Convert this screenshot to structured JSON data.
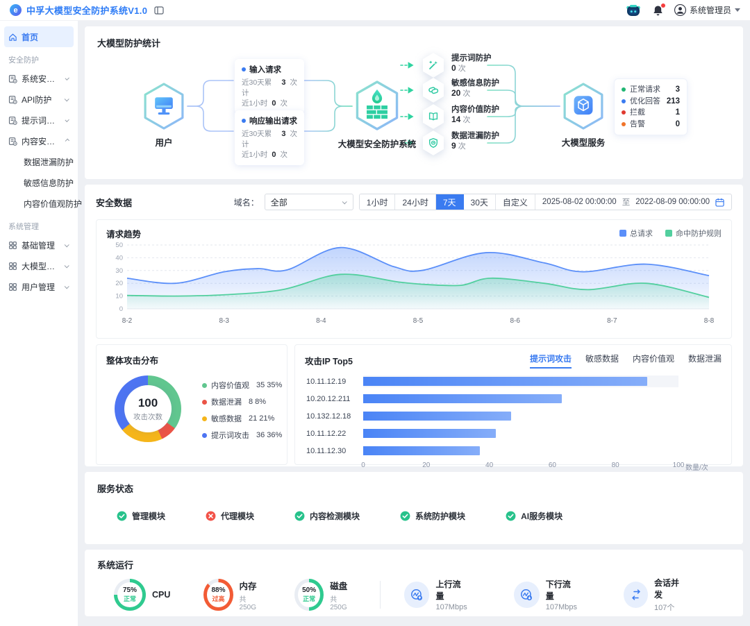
{
  "header": {
    "title": "中孚大模型安全防护系统V1.0",
    "user": "系统管理员"
  },
  "sidebar": {
    "items": [
      {
        "type": "item",
        "label": "首页",
        "icon": "home",
        "active": true
      },
      {
        "type": "section",
        "label": "安全防护"
      },
      {
        "type": "item",
        "label": "系统安全防护",
        "icon": "doc",
        "chevron": "down"
      },
      {
        "type": "item",
        "label": "API防护",
        "icon": "doc",
        "chevron": "down"
      },
      {
        "type": "item",
        "label": "提示词攻击防护",
        "icon": "doc",
        "chevron": "down"
      },
      {
        "type": "item",
        "label": "内容安全防护",
        "icon": "doc",
        "chevron": "up"
      },
      {
        "type": "subitem",
        "label": "数据泄漏防护"
      },
      {
        "type": "subitem",
        "label": "敏感信息防护"
      },
      {
        "type": "subitem",
        "label": "内容价值观防护"
      },
      {
        "type": "section",
        "label": "系统管理"
      },
      {
        "type": "item",
        "label": "基础管理",
        "icon": "grid",
        "chevron": "down"
      },
      {
        "type": "item",
        "label": "大模型管理",
        "icon": "grid",
        "chevron": "down"
      },
      {
        "type": "item",
        "label": "用户管理",
        "icon": "grid",
        "chevron": "down"
      }
    ]
  },
  "protection_stats": {
    "title": "大模型防护统计",
    "user_node": "用户",
    "system_node": "大模型安全防护系统",
    "service_node": "大模型服务",
    "request_cards": [
      {
        "title": "输入请求",
        "rows": [
          {
            "label": "近30天累计",
            "value": "3",
            "unit": "次"
          },
          {
            "label": "近1小时",
            "value": "0",
            "unit": "次"
          }
        ]
      },
      {
        "title": "响应输出请求",
        "rows": [
          {
            "label": "近30天累计",
            "value": "3",
            "unit": "次"
          },
          {
            "label": "近1小时",
            "value": "0",
            "unit": "次"
          }
        ]
      }
    ],
    "protections": [
      {
        "label": "提示词防护",
        "value": "0",
        "unit": "次",
        "icon": "wand"
      },
      {
        "label": "敏感信息防护",
        "value": "20",
        "unit": "次",
        "icon": "tag"
      },
      {
        "label": "内容价值防护",
        "value": "14",
        "unit": "次",
        "icon": "book"
      },
      {
        "label": "数据泄漏防护",
        "value": "9",
        "unit": "次",
        "icon": "shield"
      }
    ],
    "service_stats": [
      {
        "label": "正常请求",
        "value": "3",
        "color": "#21b573"
      },
      {
        "label": "优化回答",
        "value": "213",
        "color": "#3a7bf0"
      },
      {
        "label": "拦截",
        "value": "1",
        "color": "#e0392f"
      },
      {
        "label": "告警",
        "value": "0",
        "color": "#f0742a"
      }
    ]
  },
  "security_data": {
    "title": "安全数据",
    "domain_label": "域名：",
    "domain_value": "全部",
    "range_buttons": [
      {
        "label": "1小时",
        "active": false
      },
      {
        "label": "24小时",
        "active": false
      },
      {
        "label": "7天",
        "active": true
      },
      {
        "label": "30天",
        "active": false
      },
      {
        "label": "自定义",
        "active": false
      }
    ],
    "date_start": "2025-08-02 00:00:00",
    "date_separator": "至",
    "date_end": "2022-08-09 00:00:00"
  },
  "chart_data": [
    {
      "type": "area",
      "title": "请求趋势",
      "x_labels": [
        "8-2",
        "8-3",
        "8-4",
        "8-5",
        "8-6",
        "8-7",
        "8-8"
      ],
      "x_range": [
        0,
        6
      ],
      "ylim": [
        0,
        50
      ],
      "y_ticks": [
        0,
        10,
        20,
        30,
        40,
        50
      ],
      "grid": true,
      "legend_position": "top-right",
      "series": [
        {
          "name": "总请求",
          "color": "#5b8ff9",
          "points": [
            [
              0,
              24
            ],
            [
              0.5,
              20
            ],
            [
              1,
              29
            ],
            [
              1.35,
              31.5
            ],
            [
              1.65,
              30.5
            ],
            [
              2.2,
              48
            ],
            [
              2.75,
              33
            ],
            [
              3.05,
              30.2
            ],
            [
              3.7,
              44
            ],
            [
              4.3,
              36
            ],
            [
              4.7,
              29
            ],
            [
              5.35,
              35
            ],
            [
              6,
              26
            ]
          ]
        },
        {
          "name": "命中防护规则",
          "color": "#52cf9e",
          "points": [
            [
              0,
              10.5
            ],
            [
              0.5,
              10
            ],
            [
              1,
              11
            ],
            [
              1.6,
              15
            ],
            [
              2.2,
              27
            ],
            [
              2.8,
              21
            ],
            [
              3.1,
              19
            ],
            [
              3.45,
              18.5
            ],
            [
              3.75,
              24
            ],
            [
              4.3,
              20
            ],
            [
              4.75,
              15
            ],
            [
              5.35,
              20
            ],
            [
              6,
              9
            ]
          ]
        }
      ]
    },
    {
      "type": "pie",
      "title": "整体攻击分布",
      "center_value": "100",
      "center_label": "攻击次数",
      "slices": [
        {
          "label": "内容价值观",
          "value": 35,
          "percent": "35%",
          "color": "#61c68f"
        },
        {
          "label": "数据泄漏",
          "value": 8,
          "percent": "8%",
          "color": "#ea5446"
        },
        {
          "label": "敏感数据",
          "value": 21,
          "percent": "21%",
          "color": "#f5b51a"
        },
        {
          "label": "提示词攻击",
          "value": 36,
          "percent": "36%",
          "color": "#4d74f2"
        }
      ]
    },
    {
      "type": "bar",
      "title": "攻击IP Top5",
      "tabs": [
        {
          "label": "提示词攻击",
          "active": true
        },
        {
          "label": "敏感数据",
          "active": false
        },
        {
          "label": "内容价值观",
          "active": false
        },
        {
          "label": "数据泄漏",
          "active": false
        }
      ],
      "categories": [
        "10.11.12.19",
        "10.20.12.211",
        "10.132.12.18",
        "10.11.12.22",
        "10.11.12.30"
      ],
      "values": [
        90,
        63,
        47,
        42,
        37
      ],
      "xlim": [
        0,
        100
      ],
      "x_ticks": [
        0,
        20,
        40,
        60,
        80,
        100
      ],
      "unit": "数量/次",
      "highlight_row": 0
    }
  ],
  "service_status": {
    "title": "服务状态",
    "modules": [
      {
        "label": "管理模块",
        "status": "ok"
      },
      {
        "label": "代理模块",
        "status": "error"
      },
      {
        "label": "内容检测模块",
        "status": "ok"
      },
      {
        "label": "系统防护模块",
        "status": "ok"
      },
      {
        "label": "AI服务模块",
        "status": "ok"
      }
    ]
  },
  "system_running": {
    "title": "系统运行",
    "gauges": [
      {
        "percent": 75,
        "status": "正常",
        "label": "CPU",
        "sub": "",
        "color": "#2fca8f"
      },
      {
        "percent": 88,
        "status": "过高",
        "label": "内存",
        "sub": "共250G",
        "color": "#f25b35"
      },
      {
        "percent": 50,
        "status": "正常",
        "label": "磁盘",
        "sub": "共250G",
        "color": "#2fca8f"
      }
    ],
    "metrics": [
      {
        "label": "上行流量",
        "value": "107Mbps",
        "icon": "traffic-up"
      },
      {
        "label": "下行流量",
        "value": "107Mbps",
        "icon": "traffic-down"
      },
      {
        "label": "会话并发",
        "value": "107个",
        "icon": "sessions"
      }
    ]
  }
}
